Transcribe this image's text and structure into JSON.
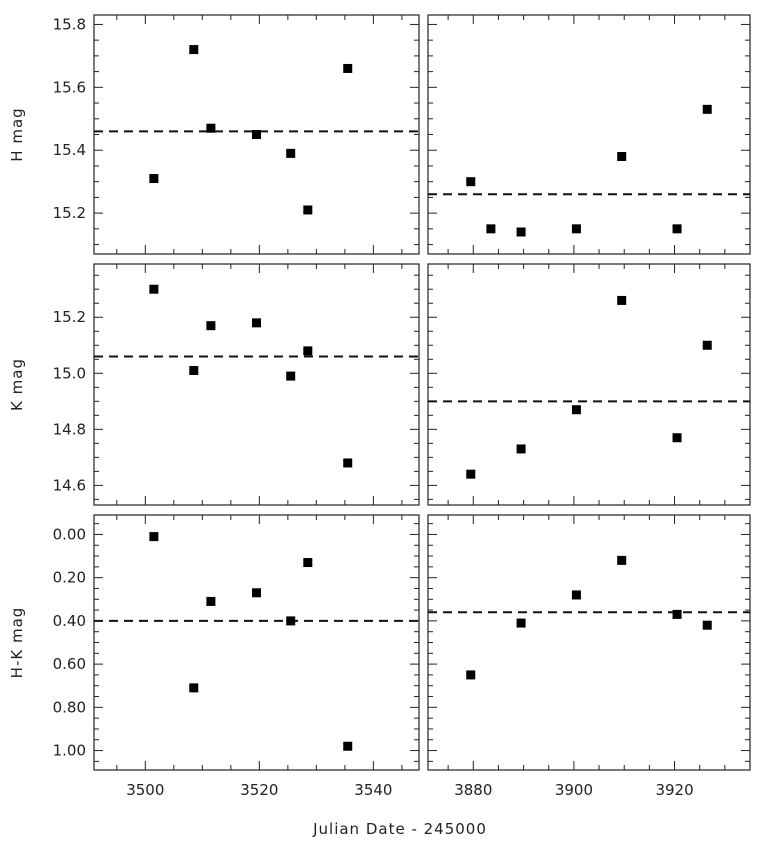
{
  "chart_data": [
    {
      "type": "scatter",
      "ylabel": "H mag",
      "xlim": [
        3491,
        3548
      ],
      "ylim": [
        15.83,
        15.07
      ],
      "y_reversed": true,
      "xticks": [
        3500,
        3520,
        3540
      ],
      "yticks": [
        15.2,
        15.4,
        15.6,
        15.8
      ],
      "ytick_labels": [
        "15.2",
        "15.4",
        "15.6",
        "15.8"
      ],
      "x": [
        3501.5,
        3508.5,
        3511.5,
        3519.5,
        3525.5,
        3528.5,
        3535.5
      ],
      "y": [
        15.31,
        15.72,
        15.47,
        15.45,
        15.39,
        15.21,
        15.66
      ],
      "reference_line": 15.46
    },
    {
      "type": "scatter",
      "xlim": [
        3871,
        3935
      ],
      "ylim": [
        15.83,
        15.07
      ],
      "y_reversed": true,
      "xticks": [
        3880,
        3900,
        3920
      ],
      "yticks": [
        15.2,
        15.4,
        15.6,
        15.8
      ],
      "x": [
        3879.5,
        3883.5,
        3889.5,
        3900.5,
        3909.5,
        3920.5,
        3926.5
      ],
      "y": [
        15.3,
        15.15,
        15.14,
        15.15,
        15.38,
        15.15,
        15.53
      ],
      "reference_line": 15.26
    },
    {
      "type": "scatter",
      "ylabel": "K mag",
      "xlim": [
        3491,
        3548
      ],
      "ylim": [
        15.39,
        14.53
      ],
      "y_reversed": true,
      "xticks": [
        3500,
        3520,
        3540
      ],
      "yticks": [
        14.6,
        14.8,
        15.0,
        15.2
      ],
      "ytick_labels": [
        "14.6",
        "14.8",
        "15.0",
        "15.2"
      ],
      "x": [
        3501.5,
        3508.5,
        3511.5,
        3519.5,
        3525.5,
        3528.5,
        3535.5
      ],
      "y": [
        15.3,
        15.01,
        15.17,
        15.18,
        14.99,
        15.08,
        14.68
      ],
      "reference_line": 15.06
    },
    {
      "type": "scatter",
      "xlim": [
        3871,
        3935
      ],
      "ylim": [
        15.39,
        14.53
      ],
      "y_reversed": true,
      "xticks": [
        3880,
        3900,
        3920
      ],
      "yticks": [
        14.6,
        14.8,
        15.0,
        15.2
      ],
      "x": [
        3879.5,
        3889.5,
        3900.5,
        3909.5,
        3920.5,
        3926.5
      ],
      "y": [
        14.64,
        14.73,
        14.87,
        15.26,
        14.77,
        15.1
      ],
      "reference_line": 14.9
    },
    {
      "type": "scatter",
      "ylabel": "H-K mag",
      "xlim": [
        3491,
        3548
      ],
      "ylim": [
        -0.09,
        1.09
      ],
      "xticks": [
        3500,
        3520,
        3540
      ],
      "xtick_labels": [
        "3500",
        "3520",
        "3540"
      ],
      "yticks": [
        0.0,
        0.2,
        0.4,
        0.6,
        0.8,
        1.0
      ],
      "ytick_labels": [
        "0.00",
        "0.20",
        "0.40",
        "0.60",
        "0.80",
        "1.00"
      ],
      "x": [
        3501.5,
        3508.5,
        3511.5,
        3519.5,
        3525.5,
        3528.5,
        3535.5
      ],
      "y": [
        0.01,
        0.71,
        0.31,
        0.27,
        0.4,
        0.13,
        0.98
      ],
      "reference_line": 0.4
    },
    {
      "type": "scatter",
      "xlim": [
        3871,
        3935
      ],
      "ylim": [
        -0.09,
        1.09
      ],
      "xticks": [
        3880,
        3900,
        3920
      ],
      "xtick_labels": [
        "3880",
        "3900",
        "3920"
      ],
      "yticks": [
        0.0,
        0.2,
        0.4,
        0.6,
        0.8,
        1.0
      ],
      "x": [
        3879.5,
        3889.5,
        3900.5,
        3909.5,
        3920.5,
        3926.5
      ],
      "y": [
        0.65,
        0.41,
        0.28,
        0.12,
        0.37,
        0.42
      ],
      "reference_line": 0.36
    }
  ],
  "xlabel": "Julian Date - 245000"
}
